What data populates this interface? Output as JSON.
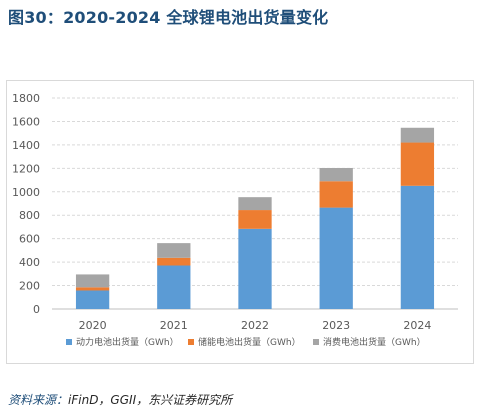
{
  "title": "图30：2020-2024 全球锂电池出货量变化",
  "source": {
    "label": "资料来源：",
    "text": "iFinD，GGII，东兴证券研究所"
  },
  "chart_data": {
    "type": "bar",
    "stacked": true,
    "categories": [
      "2020",
      "2021",
      "2022",
      "2023",
      "2024"
    ],
    "series": [
      {
        "name": "动力电池出货量（GWh）",
        "color": "#5b9bd5",
        "values": [
          158,
          371,
          684,
          865,
          1051
        ]
      },
      {
        "name": "储能电池出货量（GWh）",
        "color": "#ed7d31",
        "values": [
          27,
          66,
          160,
          225,
          369
        ]
      },
      {
        "name": "消费电池出货量（GWh）",
        "color": "#a5a5a5",
        "values": [
          110,
          125,
          110,
          113,
          126
        ]
      }
    ],
    "ylim": [
      0,
      1800
    ],
    "yticks": [
      0,
      200,
      400,
      600,
      800,
      1000,
      1200,
      1400,
      1600,
      1800
    ],
    "grid": "horizontal-dashed",
    "legend": "bottom"
  }
}
